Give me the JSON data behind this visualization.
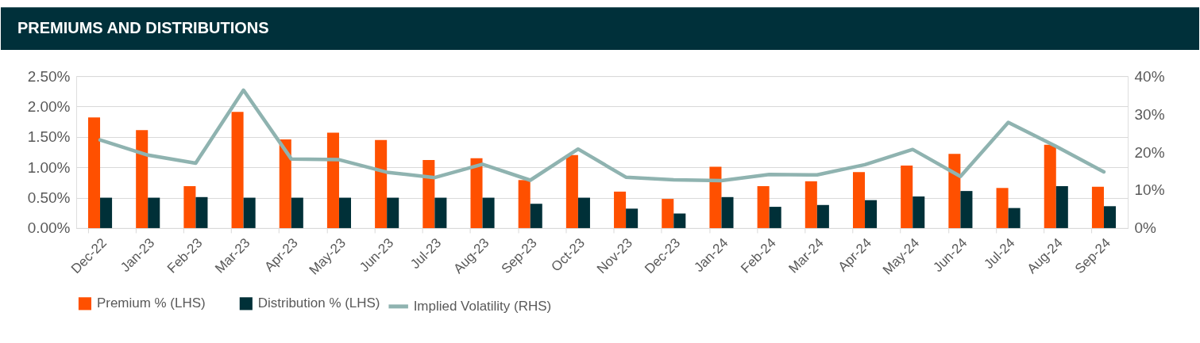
{
  "chart_data": {
    "type": "bar",
    "title": "PREMIUMS AND DISTRIBUTIONS",
    "categories": [
      "Dec-22",
      "Jan-23",
      "Feb-23",
      "Mar-23",
      "Apr-23",
      "May-23",
      "Jun-23",
      "Jul-23",
      "Aug-23",
      "Sep-23",
      "Oct-23",
      "Nov-23",
      "Dec-23",
      "Jan-24",
      "Feb-24",
      "Mar-24",
      "Apr-24",
      "May-24",
      "Jun-24",
      "Jul-24",
      "Aug-24",
      "Sep-24"
    ],
    "series": [
      {
        "name": "Premium % (LHS)",
        "color": "#ff5000",
        "values": [
          1.82,
          1.61,
          0.69,
          1.91,
          1.46,
          1.57,
          1.45,
          1.12,
          1.15,
          0.79,
          1.2,
          0.6,
          0.48,
          1.01,
          0.69,
          0.77,
          0.92,
          1.03,
          1.22,
          0.66,
          1.37,
          0.68
        ]
      },
      {
        "name": "Distribution % (LHS)",
        "color": "#003038",
        "values": [
          0.5,
          0.5,
          0.51,
          0.5,
          0.5,
          0.5,
          0.5,
          0.5,
          0.5,
          0.4,
          0.5,
          0.32,
          0.24,
          0.51,
          0.35,
          0.38,
          0.46,
          0.52,
          0.61,
          0.33,
          0.69,
          0.36
        ]
      },
      {
        "name": "Implied Volatility (RHS)",
        "type": "line",
        "axis": "y2",
        "color": "#8fb3b0",
        "values": [
          23.2,
          19.2,
          17.1,
          36.3,
          18.2,
          18.0,
          14.7,
          13.3,
          16.8,
          12.6,
          20.8,
          13.4,
          12.7,
          12.5,
          14.1,
          14.0,
          16.7,
          20.7,
          13.6,
          27.8,
          21.5,
          14.8
        ]
      }
    ],
    "ylim": [
      0,
      2.5
    ],
    "yticks": [
      {
        "value": 0,
        "label": "0.00%"
      },
      {
        "value": 0.5,
        "label": "0.50%"
      },
      {
        "value": 1,
        "label": "1.00%"
      },
      {
        "value": 1.5,
        "label": "1.50%"
      },
      {
        "value": 2,
        "label": "2.00%"
      },
      {
        "value": 2.5,
        "label": "2.50%"
      }
    ],
    "y2lim": [
      0,
      40
    ],
    "y2ticks": [
      {
        "value": 0,
        "label": "0%"
      },
      {
        "value": 10,
        "label": "10%"
      },
      {
        "value": 20,
        "label": "20%"
      },
      {
        "value": 30,
        "label": "30%"
      },
      {
        "value": 40,
        "label": "40%"
      }
    ],
    "grid": "y",
    "legend": "bottom",
    "line_style": "solid",
    "marker": "none"
  }
}
